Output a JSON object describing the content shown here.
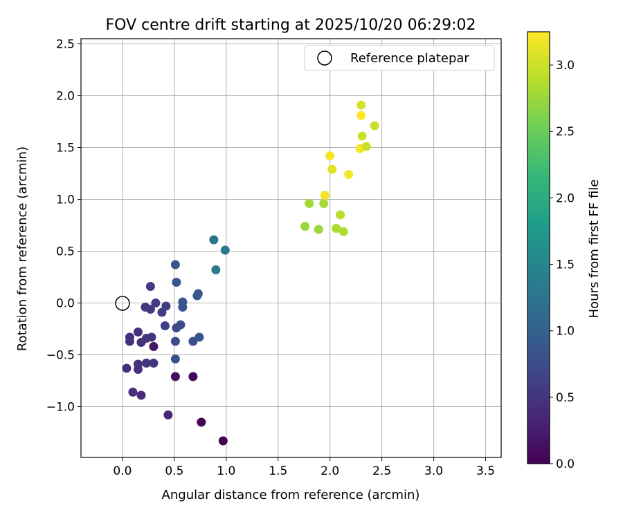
{
  "chart_data": {
    "type": "scatter",
    "title": "FOV centre drift starting at 2025/10/20 06:29:02",
    "xlabel": "Angular distance from reference (arcmin)",
    "ylabel": "Rotation from reference (arcmin)",
    "xlim": [
      -0.4,
      3.65
    ],
    "ylim": [
      -1.49,
      2.55
    ],
    "xticks": [
      0.0,
      0.5,
      1.0,
      1.5,
      2.0,
      2.5,
      3.0,
      3.5
    ],
    "xtick_labels": [
      "0.0",
      "0.5",
      "1.0",
      "1.5",
      "2.0",
      "2.5",
      "3.0",
      "3.5"
    ],
    "yticks": [
      -1.0,
      -0.5,
      0.0,
      0.5,
      1.0,
      1.5,
      2.0,
      2.5
    ],
    "ytick_labels": [
      "−1.0",
      "−0.5",
      "0.0",
      "0.5",
      "1.0",
      "1.5",
      "2.0",
      "2.5"
    ],
    "grid": true,
    "colormap": "viridis",
    "colorbar": {
      "label": "Hours from first FF file",
      "range": [
        0.0,
        3.25
      ],
      "ticks": [
        0.0,
        0.5,
        1.0,
        1.5,
        2.0,
        2.5,
        3.0
      ],
      "tick_labels": [
        "0.0",
        "0.5",
        "1.0",
        "1.5",
        "2.0",
        "2.5",
        "3.0"
      ]
    },
    "reference": {
      "label": "Reference platepar",
      "x": 0.0,
      "y": 0.0,
      "marker": "open-circle"
    },
    "legend": {
      "placement": "top-right",
      "entries": [
        "Reference platepar"
      ]
    },
    "points": [
      {
        "x": 0.97,
        "y": -1.33,
        "t": 0.0
      },
      {
        "x": 0.76,
        "y": -1.15,
        "t": 0.03
      },
      {
        "x": 0.68,
        "y": -0.71,
        "t": 0.05
      },
      {
        "x": 0.51,
        "y": -0.71,
        "t": 0.12
      },
      {
        "x": 0.3,
        "y": -0.42,
        "t": 0.2
      },
      {
        "x": 0.44,
        "y": -1.08,
        "t": 0.35
      },
      {
        "x": 0.18,
        "y": -0.89,
        "t": 0.4
      },
      {
        "x": 0.1,
        "y": -0.86,
        "t": 0.42
      },
      {
        "x": 0.04,
        "y": -0.63,
        "t": 0.45
      },
      {
        "x": 0.15,
        "y": -0.64,
        "t": 0.45
      },
      {
        "x": 0.15,
        "y": -0.59,
        "t": 0.45
      },
      {
        "x": 0.23,
        "y": -0.58,
        "t": 0.5
      },
      {
        "x": 0.3,
        "y": -0.58,
        "t": 0.52
      },
      {
        "x": 0.07,
        "y": -0.37,
        "t": 0.45
      },
      {
        "x": 0.07,
        "y": -0.33,
        "t": 0.45
      },
      {
        "x": 0.15,
        "y": -0.28,
        "t": 0.45
      },
      {
        "x": 0.18,
        "y": -0.38,
        "t": 0.45
      },
      {
        "x": 0.23,
        "y": -0.34,
        "t": 0.5
      },
      {
        "x": 0.28,
        "y": -0.33,
        "t": 0.5
      },
      {
        "x": 0.22,
        "y": -0.04,
        "t": 0.5
      },
      {
        "x": 0.27,
        "y": -0.06,
        "t": 0.55
      },
      {
        "x": 0.32,
        "y": 0.0,
        "t": 0.55
      },
      {
        "x": 0.38,
        "y": -0.09,
        "t": 0.6
      },
      {
        "x": 0.42,
        "y": -0.03,
        "t": 0.6
      },
      {
        "x": 0.27,
        "y": 0.16,
        "t": 0.55
      },
      {
        "x": 0.41,
        "y": -0.22,
        "t": 0.6
      },
      {
        "x": 0.52,
        "y": -0.24,
        "t": 0.7
      },
      {
        "x": 0.56,
        "y": -0.21,
        "t": 0.75
      },
      {
        "x": 0.51,
        "y": -0.37,
        "t": 0.75
      },
      {
        "x": 0.51,
        "y": -0.54,
        "t": 0.8
      },
      {
        "x": 0.68,
        "y": -0.37,
        "t": 0.8
      },
      {
        "x": 0.74,
        "y": -0.33,
        "t": 0.85
      },
      {
        "x": 0.58,
        "y": 0.01,
        "t": 0.85
      },
      {
        "x": 0.58,
        "y": -0.04,
        "t": 0.85
      },
      {
        "x": 0.72,
        "y": 0.07,
        "t": 0.9
      },
      {
        "x": 0.73,
        "y": 0.09,
        "t": 0.9
      },
      {
        "x": 0.52,
        "y": 0.2,
        "t": 0.85
      },
      {
        "x": 0.51,
        "y": 0.37,
        "t": 0.85
      },
      {
        "x": 0.88,
        "y": 0.61,
        "t": 1.25
      },
      {
        "x": 0.99,
        "y": 0.51,
        "t": 1.3
      },
      {
        "x": 0.9,
        "y": 0.32,
        "t": 1.35
      },
      {
        "x": 1.76,
        "y": 0.74,
        "t": 2.75
      },
      {
        "x": 1.89,
        "y": 0.71,
        "t": 2.75
      },
      {
        "x": 2.06,
        "y": 0.72,
        "t": 2.85
      },
      {
        "x": 2.13,
        "y": 0.69,
        "t": 2.85
      },
      {
        "x": 2.1,
        "y": 0.85,
        "t": 2.9
      },
      {
        "x": 1.8,
        "y": 0.96,
        "t": 2.8
      },
      {
        "x": 1.94,
        "y": 0.96,
        "t": 2.8
      },
      {
        "x": 1.95,
        "y": 1.04,
        "t": 3.2
      },
      {
        "x": 2.02,
        "y": 1.29,
        "t": 3.1
      },
      {
        "x": 2.18,
        "y": 1.24,
        "t": 3.2
      },
      {
        "x": 2.0,
        "y": 1.42,
        "t": 3.2
      },
      {
        "x": 2.29,
        "y": 1.49,
        "t": 3.2
      },
      {
        "x": 2.35,
        "y": 1.51,
        "t": 3.0
      },
      {
        "x": 2.31,
        "y": 1.61,
        "t": 3.0
      },
      {
        "x": 2.43,
        "y": 1.71,
        "t": 3.0
      },
      {
        "x": 2.3,
        "y": 1.81,
        "t": 3.25
      },
      {
        "x": 2.3,
        "y": 1.91,
        "t": 3.05
      }
    ]
  }
}
